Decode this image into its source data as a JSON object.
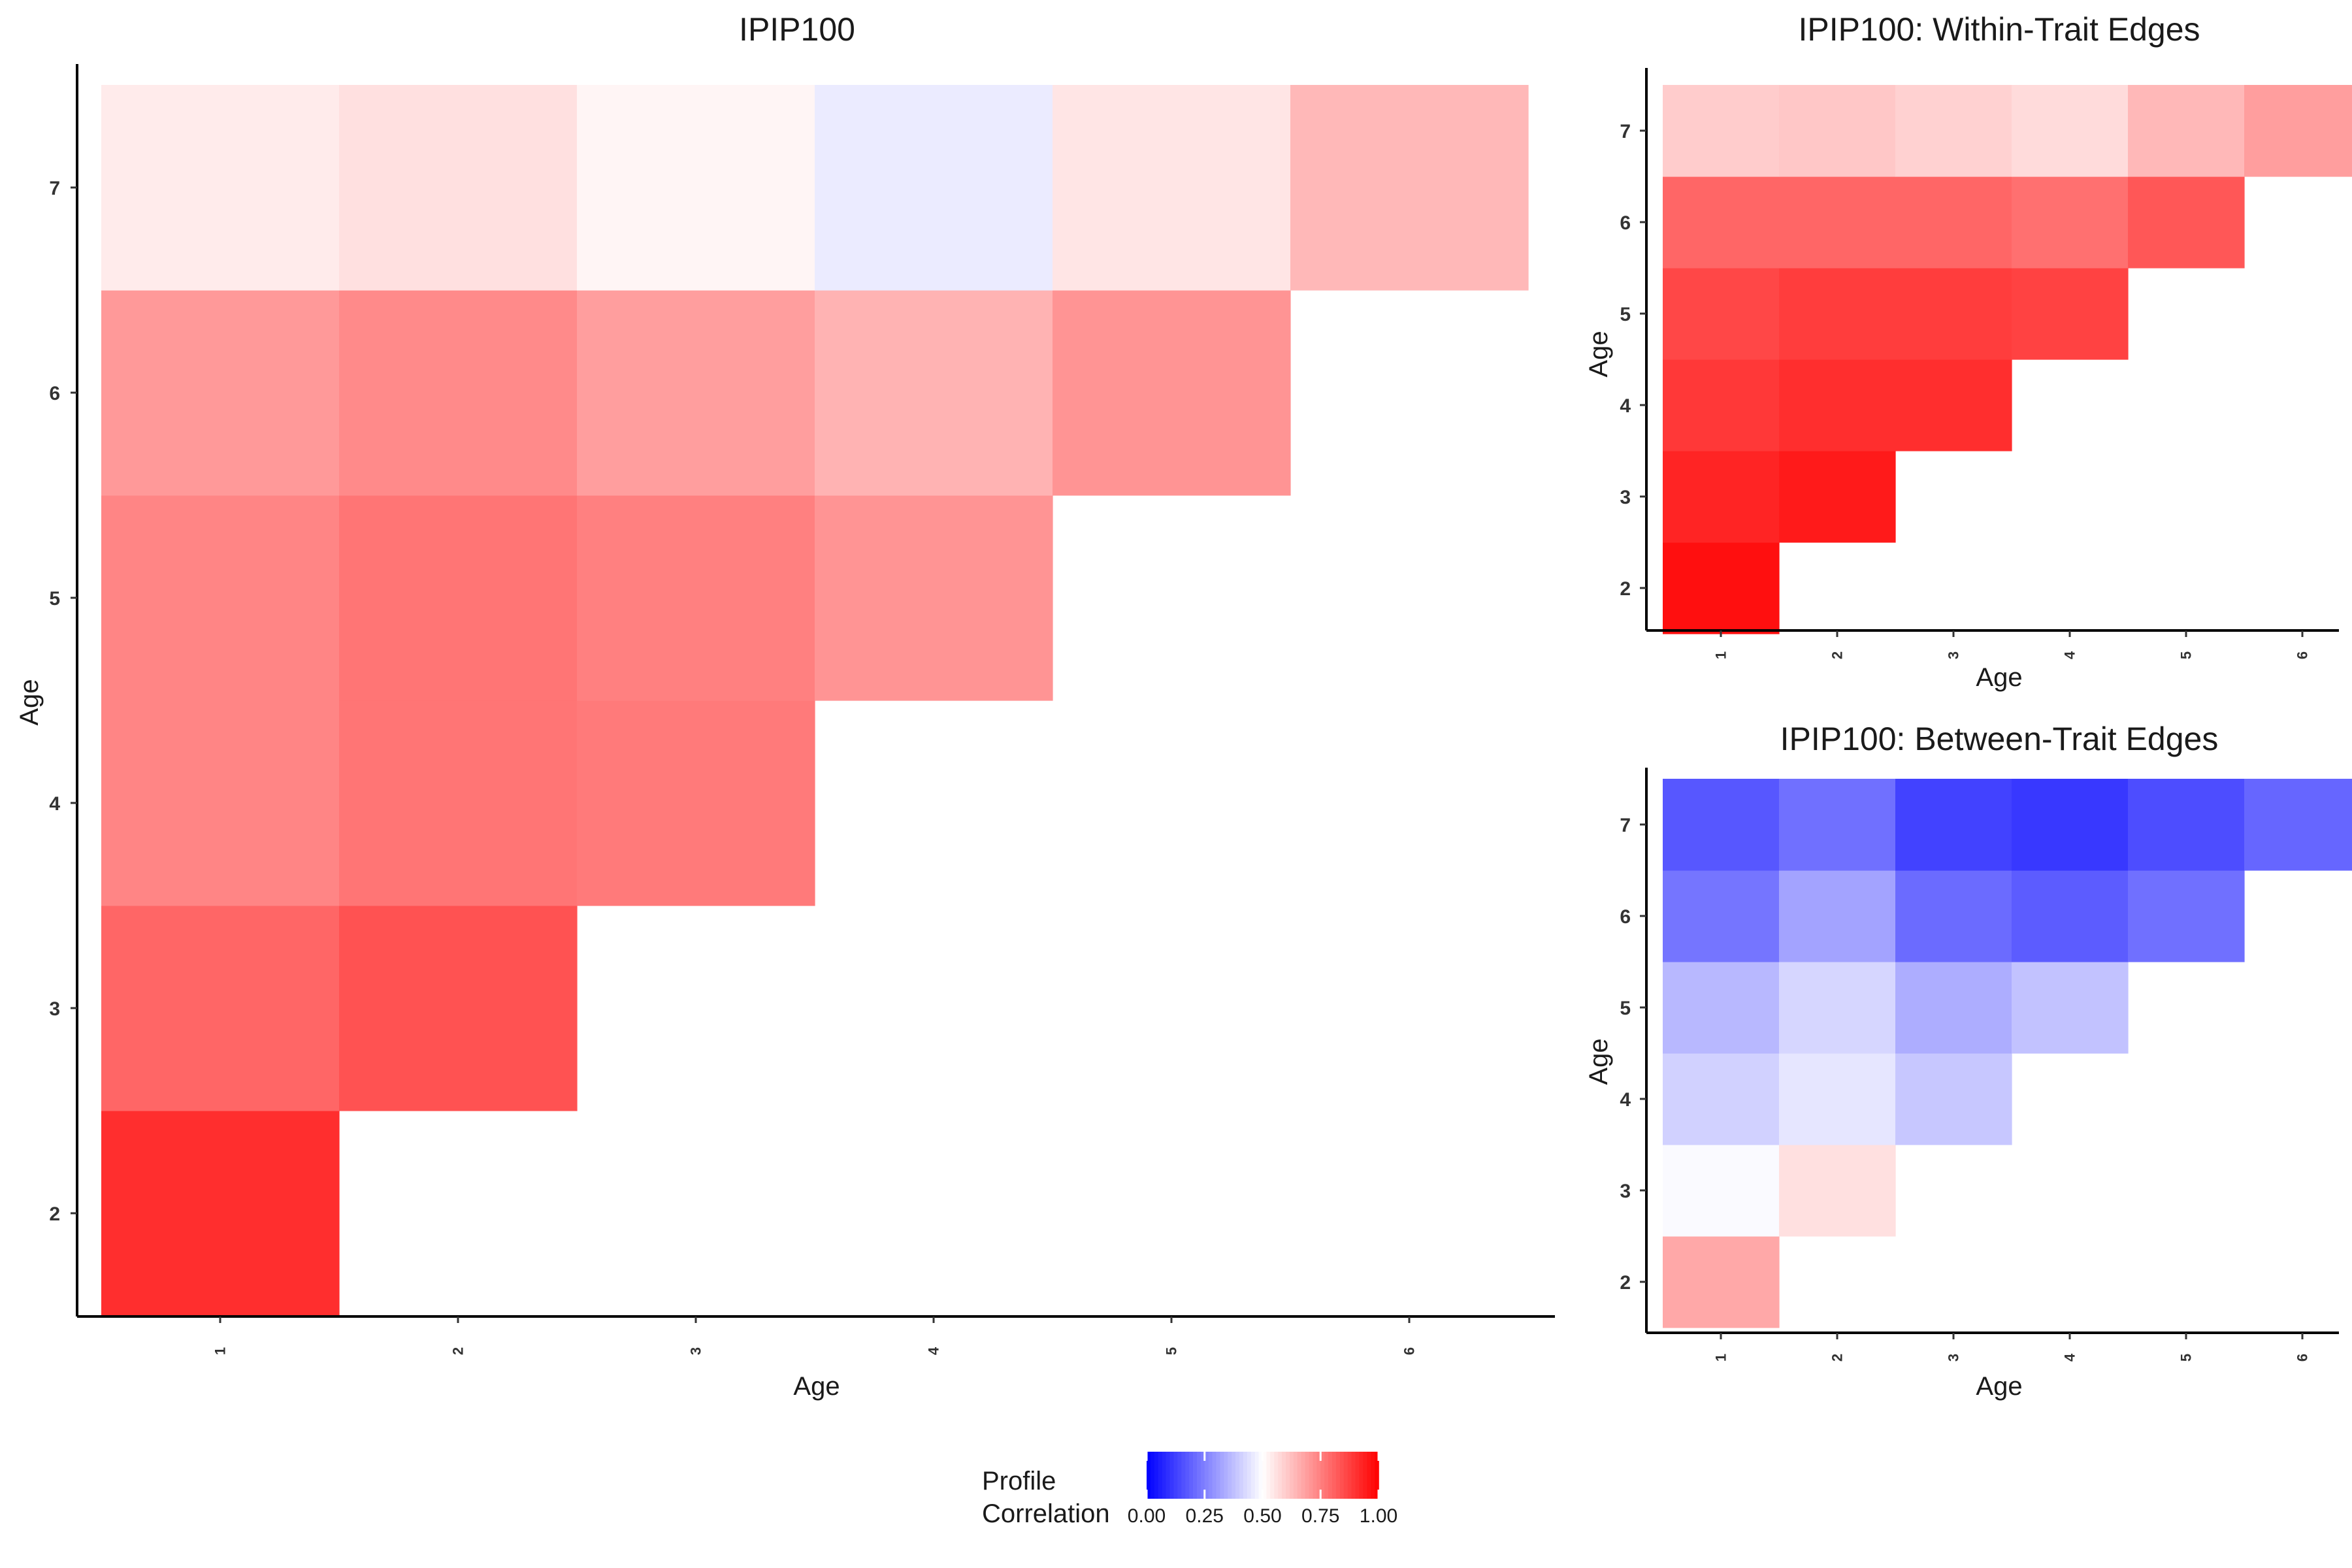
{
  "chart_data": [
    {
      "id": "main",
      "type": "heatmap",
      "title": "IPIP100",
      "xlabel": "Age",
      "ylabel": "Age",
      "x_categories": [
        "1",
        "2",
        "3",
        "4",
        "5",
        "6"
      ],
      "y_categories": [
        "2",
        "3",
        "4",
        "5",
        "6",
        "7"
      ],
      "cells": [
        {
          "x": "1",
          "y": "2",
          "value": 0.91
        },
        {
          "x": "1",
          "y": "3",
          "value": 0.8
        },
        {
          "x": "2",
          "y": "3",
          "value": 0.84
        },
        {
          "x": "1",
          "y": "4",
          "value": 0.74
        },
        {
          "x": "2",
          "y": "4",
          "value": 0.77
        },
        {
          "x": "3",
          "y": "4",
          "value": 0.76
        },
        {
          "x": "1",
          "y": "5",
          "value": 0.74
        },
        {
          "x": "2",
          "y": "5",
          "value": 0.77
        },
        {
          "x": "3",
          "y": "5",
          "value": 0.75
        },
        {
          "x": "4",
          "y": "5",
          "value": 0.71
        },
        {
          "x": "1",
          "y": "6",
          "value": 0.7
        },
        {
          "x": "2",
          "y": "6",
          "value": 0.73
        },
        {
          "x": "3",
          "y": "6",
          "value": 0.69
        },
        {
          "x": "4",
          "y": "6",
          "value": 0.65
        },
        {
          "x": "5",
          "y": "6",
          "value": 0.71
        },
        {
          "x": "1",
          "y": "7",
          "value": 0.54
        },
        {
          "x": "2",
          "y": "7",
          "value": 0.56
        },
        {
          "x": "3",
          "y": "7",
          "value": 0.52
        },
        {
          "x": "4",
          "y": "7",
          "value": 0.46
        },
        {
          "x": "5",
          "y": "7",
          "value": 0.55
        },
        {
          "x": "6",
          "y": "7",
          "value": 0.64
        }
      ]
    },
    {
      "id": "within",
      "type": "heatmap",
      "title": "IPIP100: Within-Trait Edges",
      "xlabel": "Age",
      "ylabel": "Age",
      "x_categories": [
        "1",
        "2",
        "3",
        "4",
        "5",
        "6"
      ],
      "y_categories": [
        "2",
        "3",
        "4",
        "5",
        "6",
        "7"
      ],
      "cells": [
        {
          "x": "1",
          "y": "2",
          "value": 0.97
        },
        {
          "x": "1",
          "y": "3",
          "value": 0.93
        },
        {
          "x": "2",
          "y": "3",
          "value": 0.95
        },
        {
          "x": "1",
          "y": "4",
          "value": 0.89
        },
        {
          "x": "2",
          "y": "4",
          "value": 0.91
        },
        {
          "x": "3",
          "y": "4",
          "value": 0.91
        },
        {
          "x": "1",
          "y": "5",
          "value": 0.86
        },
        {
          "x": "2",
          "y": "5",
          "value": 0.88
        },
        {
          "x": "3",
          "y": "5",
          "value": 0.88
        },
        {
          "x": "4",
          "y": "5",
          "value": 0.87
        },
        {
          "x": "1",
          "y": "6",
          "value": 0.8
        },
        {
          "x": "2",
          "y": "6",
          "value": 0.8
        },
        {
          "x": "3",
          "y": "6",
          "value": 0.8
        },
        {
          "x": "4",
          "y": "6",
          "value": 0.78
        },
        {
          "x": "5",
          "y": "6",
          "value": 0.83
        },
        {
          "x": "1",
          "y": "7",
          "value": 0.6
        },
        {
          "x": "2",
          "y": "7",
          "value": 0.61
        },
        {
          "x": "3",
          "y": "7",
          "value": 0.59
        },
        {
          "x": "4",
          "y": "7",
          "value": 0.57
        },
        {
          "x": "5",
          "y": "7",
          "value": 0.64
        },
        {
          "x": "6",
          "y": "7",
          "value": 0.69
        }
      ]
    },
    {
      "id": "between",
      "type": "heatmap",
      "title": "IPIP100: Between-Trait Edges",
      "xlabel": "Age",
      "ylabel": "Age",
      "x_categories": [
        "1",
        "2",
        "3",
        "4",
        "5",
        "6"
      ],
      "y_categories": [
        "2",
        "3",
        "4",
        "5",
        "6",
        "7"
      ],
      "cells": [
        {
          "x": "1",
          "y": "2",
          "value": 0.67
        },
        {
          "x": "1",
          "y": "3",
          "value": 0.49
        },
        {
          "x": "2",
          "y": "3",
          "value": 0.56
        },
        {
          "x": "1",
          "y": "4",
          "value": 0.41
        },
        {
          "x": "2",
          "y": "4",
          "value": 0.45
        },
        {
          "x": "3",
          "y": "4",
          "value": 0.39
        },
        {
          "x": "1",
          "y": "5",
          "value": 0.36
        },
        {
          "x": "2",
          "y": "5",
          "value": 0.42
        },
        {
          "x": "3",
          "y": "5",
          "value": 0.34
        },
        {
          "x": "4",
          "y": "5",
          "value": 0.38
        },
        {
          "x": "1",
          "y": "6",
          "value": 0.23
        },
        {
          "x": "2",
          "y": "6",
          "value": 0.32
        },
        {
          "x": "3",
          "y": "6",
          "value": 0.21
        },
        {
          "x": "4",
          "y": "6",
          "value": 0.18
        },
        {
          "x": "5",
          "y": "6",
          "value": 0.22
        },
        {
          "x": "1",
          "y": "7",
          "value": 0.17
        },
        {
          "x": "2",
          "y": "7",
          "value": 0.22
        },
        {
          "x": "3",
          "y": "7",
          "value": 0.13
        },
        {
          "x": "4",
          "y": "7",
          "value": 0.11
        },
        {
          "x": "5",
          "y": "7",
          "value": 0.15
        },
        {
          "x": "6",
          "y": "7",
          "value": 0.2
        }
      ]
    }
  ],
  "legend": {
    "title_line1": "Profile",
    "title_line2": "Correlation",
    "ticks": [
      "0.00",
      "0.25",
      "0.50",
      "0.75",
      "1.00"
    ],
    "range": [
      0,
      1
    ],
    "position": "bottom",
    "colors": {
      "low": "#0000ff",
      "mid": "#ffffff",
      "high": "#ff0000"
    }
  }
}
